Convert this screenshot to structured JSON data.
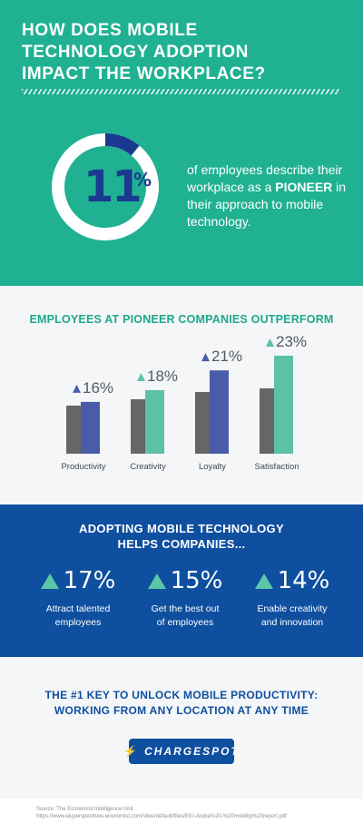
{
  "header": {
    "title_lines": [
      "HOW DOES MOBILE",
      "TECHNOLOGY ADOPTION",
      "IMPACT THE WORKPLACE?"
    ],
    "stat_value": "11",
    "stat_unit": "%",
    "stat_fraction": 0.11,
    "desc_before": "of employees describe their workplace as a ",
    "desc_bold": "PIONEER",
    "desc_after": " in their approach to mobile technology.",
    "colors": {
      "background": "#20b192",
      "ring_track": "#ffffff",
      "ring_fill": "#1a3a8f"
    }
  },
  "pioneer": {
    "heading": "EMPLOYEES AT PIONEER COMPANIES OUTPERFORM"
  },
  "chart_data": {
    "type": "bar",
    "categories": [
      "Productivity",
      "Creativity",
      "Loyalty",
      "Satisfaction"
    ],
    "labels": [
      "16%",
      "18%",
      "21%",
      "23%"
    ],
    "percent_increase": [
      16,
      18,
      21,
      23
    ],
    "series_colors": [
      "#666666",
      "#4a5ba8",
      "#5cc1a6"
    ],
    "bar_highlight": [
      "blue",
      "green",
      "blue",
      "green"
    ],
    "grid": false,
    "legend": "none"
  },
  "adopting": {
    "heading_lines": [
      "ADOPTING MOBILE TECHNOLOGY",
      "HELPS COMPANIES..."
    ],
    "stats": [
      {
        "value": "17%",
        "label_lines": [
          "Attract talented",
          "employees"
        ]
      },
      {
        "value": "15%",
        "label_lines": [
          "Get the best out",
          "of employees"
        ]
      },
      {
        "value": "14%",
        "label_lines": [
          "Enable creativity",
          "and innovation"
        ]
      }
    ]
  },
  "key": {
    "heading_lines": [
      "THE #1 KEY TO UNLOCK MOBILE PRODUCTIVITY:",
      "WORKING FROM ANY LOCATION AT ANY TIME"
    ],
    "logo_text": "CHARGESPOT",
    "logo_icon": "lightning-bolt-icon"
  },
  "footer": {
    "source_line": "Source: The Economist Intelligence Unit",
    "url_line": "https://www.eiuperspectives.economist.com/sites/default/files/EIU-Aruba%20-%20mobility%20report.pdf"
  }
}
